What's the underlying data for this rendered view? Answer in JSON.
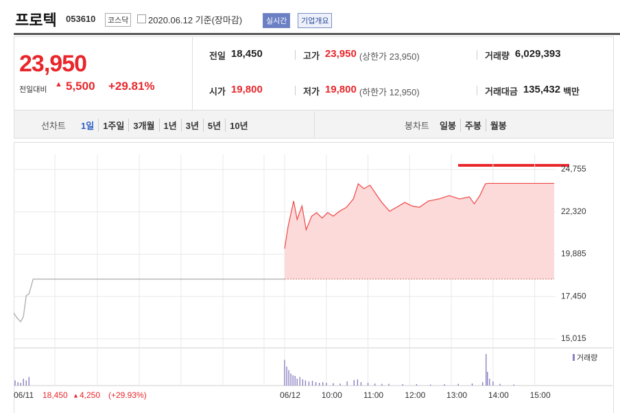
{
  "header": {
    "title": "프로텍",
    "code": "053610",
    "market": "코스닥",
    "date": "2020.06.12 기준(장마감)",
    "buttons": [
      "실시간",
      "기업개요"
    ]
  },
  "price": {
    "current": "23,950",
    "change_label": "전일대비",
    "change": "5,500",
    "change_rate": "+29.81%"
  },
  "stats": [
    {
      "label": "전일",
      "value": "18,450"
    },
    {
      "label": "고가",
      "value": "23,950",
      "note": "(상한가 23,950)"
    },
    {
      "label": "거래량",
      "value": "6,029,393"
    },
    {
      "label": "시가",
      "value": "19,800"
    },
    {
      "label": "저가",
      "value": "19,800",
      "note": "(하한가 12,950)"
    },
    {
      "label": "거래대금",
      "value": "135,432",
      "unit": "백만"
    }
  ],
  "tabs": {
    "line_label": "선차트",
    "line": [
      "1일",
      "1주일",
      "3개월",
      "1년",
      "3년",
      "5년",
      "10년"
    ],
    "candle_label": "봉차트",
    "candle": [
      "일봉",
      "주봉",
      "월봉"
    ]
  },
  "chart_data": {
    "type": "line",
    "xlim": [
      -390,
      390
    ],
    "ylim": [
      14460,
      25820
    ],
    "yticks": [
      {
        "value": 24755,
        "label": "24,755"
      },
      {
        "value": 22320,
        "label": "22,320"
      },
      {
        "value": 19885,
        "label": "19,885"
      },
      {
        "value": 17450,
        "label": "17,450"
      },
      {
        "value": 15015,
        "label": "15,015"
      }
    ],
    "xticks": [
      {
        "value": -390,
        "label": "06/11"
      },
      {
        "value": 0,
        "label": "06/12"
      },
      {
        "value": 60,
        "label": "10:00"
      },
      {
        "value": 120,
        "label": "11:00"
      },
      {
        "value": 180,
        "label": "12:00"
      },
      {
        "value": 240,
        "label": "13:00"
      },
      {
        "value": 300,
        "label": "14:00"
      },
      {
        "value": 360,
        "label": "15:00"
      }
    ],
    "grid": true,
    "prev_close": {
      "value": 18450,
      "label": "18,450"
    },
    "prev_change": "4,250",
    "prev_change_rate": "(+29.93%)",
    "series": [
      {
        "color": "#aaaaaa",
        "x": [
          -390,
          -385,
          -380,
          -376,
          -372,
          -368,
          -362,
          -355,
          0
        ],
        "values": [
          16500,
          16200,
          16000,
          16300,
          17500,
          17600,
          18450,
          18450,
          18450
        ]
      },
      {
        "color": "#f05050",
        "x": [
          0,
          5,
          13,
          18,
          25,
          31,
          39,
          46,
          54,
          62,
          70,
          79,
          89,
          99,
          106,
          114,
          123,
          131,
          140,
          151,
          161,
          173,
          183,
          194,
          207,
          222,
          237,
          252,
          266,
          273,
          281,
          289,
          293,
          388
        ],
        "values": [
          20200,
          21480,
          22940,
          21880,
          22660,
          21290,
          22070,
          22270,
          21960,
          22270,
          22070,
          22350,
          22580,
          23060,
          23930,
          23650,
          23850,
          23370,
          22860,
          22350,
          22580,
          22860,
          22660,
          22580,
          22940,
          23060,
          23250,
          23060,
          23180,
          22780,
          23250,
          23930,
          23950,
          23950
        ]
      }
    ],
    "volume": {
      "name": "거래량",
      "color": "#8a7fc0",
      "ylim": [
        0,
        100
      ],
      "x": [
        -388,
        -384,
        -380,
        -376,
        -372,
        -368,
        0,
        3,
        6,
        9,
        12,
        15,
        18,
        22,
        26,
        30,
        35,
        40,
        45,
        50,
        55,
        60,
        70,
        80,
        90,
        100,
        105,
        110,
        120,
        130,
        140,
        150,
        170,
        190,
        210,
        230,
        250,
        270,
        285,
        290,
        292,
        295,
        300,
        310,
        330
      ],
      "values": [
        15,
        10,
        8,
        20,
        15,
        25,
        75,
        55,
        45,
        35,
        30,
        28,
        20,
        25,
        18,
        15,
        12,
        14,
        10,
        8,
        10,
        8,
        7,
        6,
        12,
        16,
        18,
        10,
        8,
        6,
        5,
        5,
        4,
        4,
        3,
        4,
        5,
        6,
        10,
        92,
        40,
        20,
        12,
        5,
        3
      ]
    }
  }
}
